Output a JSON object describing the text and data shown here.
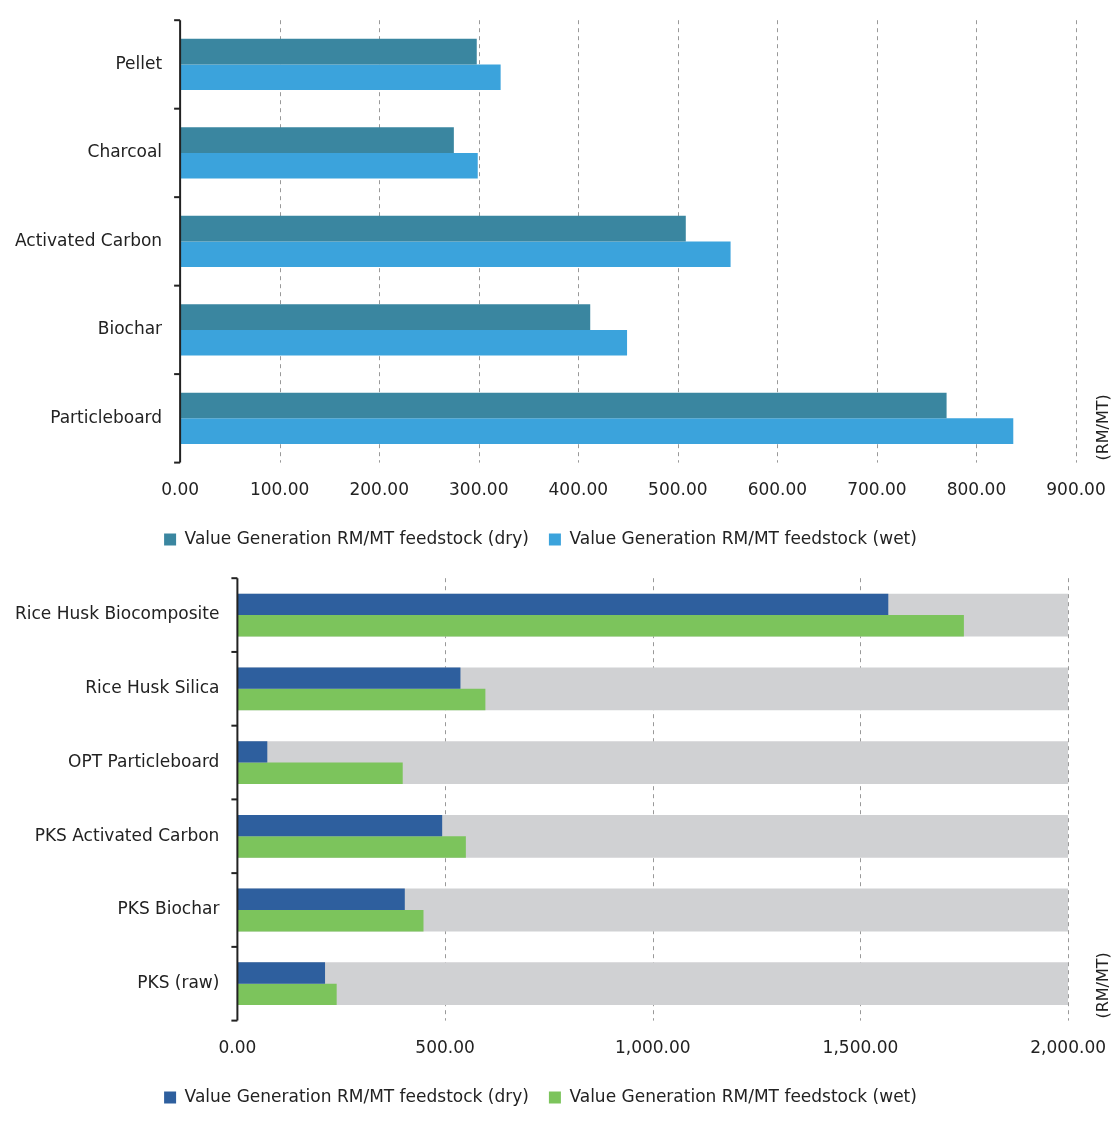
{
  "chart_data": [
    {
      "type": "bar",
      "orientation": "horizontal",
      "categories": [
        "Pellet",
        "Charcoal",
        "Activated Carbon",
        "Biochar",
        "Particleboard"
      ],
      "series": [
        {
          "name": "Value Generation RM/MT feedstock (dry)",
          "color": "#3a86a0",
          "values": [
            298,
            275,
            508,
            412,
            770
          ]
        },
        {
          "name": "Value Generation RM/MT feedstock (wet)",
          "color": "#3ba3dc",
          "values": [
            322,
            299,
            553,
            449,
            837
          ]
        }
      ],
      "xlim": [
        0,
        900
      ],
      "xticks": [
        {
          "value": 0,
          "label": "0.00"
        },
        {
          "value": 100,
          "label": "100.00"
        },
        {
          "value": 200,
          "label": "200.00"
        },
        {
          "value": 300,
          "label": "300.00"
        },
        {
          "value": 400,
          "label": "400.00"
        },
        {
          "value": 500,
          "label": "500.00"
        },
        {
          "value": 600,
          "label": "600.00"
        },
        {
          "value": 700,
          "label": "700.00"
        },
        {
          "value": 800,
          "label": "800.00"
        },
        {
          "value": 900,
          "label": "900.00"
        }
      ],
      "annotations": [
        "(RM/MT)"
      ],
      "grid": "x",
      "legend": "bottom"
    },
    {
      "type": "bar",
      "orientation": "horizontal",
      "annotations": [
        "(RM/MT)"
      ],
      "categories": [
        "Rice Husk Biocomposite",
        "Rice Husk Silica",
        "OPT Particleboard",
        "PKS Activated Carbon",
        "PKS Biochar",
        "PKS (raw)"
      ],
      "series": [
        {
          "name": "Value Generation RM/MT feedstock (dry)",
          "color": "#2e5f9e",
          "values": [
            1567,
            537,
            72,
            493,
            403,
            211
          ]
        },
        {
          "name": "Value Generation RM/MT feedstock (wet)",
          "color": "#7cc45c",
          "values": [
            1749,
            597,
            398,
            550,
            448,
            239
          ]
        },
        {
          "color": "#d0d1d3",
          "values": [
            2000,
            2000,
            2000,
            2000,
            2000,
            2000
          ]
        }
      ],
      "xlim": [
        0,
        2000
      ],
      "xticks": [
        {
          "value": 0,
          "label": "0.00"
        },
        {
          "value": 500,
          "label": "500.00"
        },
        {
          "value": 1000,
          "label": "1,000.00"
        },
        {
          "value": 1500,
          "label": "1,500.00"
        },
        {
          "value": 2000,
          "label": "2,000.00"
        }
      ],
      "grid": "x",
      "legend": "bottom"
    }
  ]
}
